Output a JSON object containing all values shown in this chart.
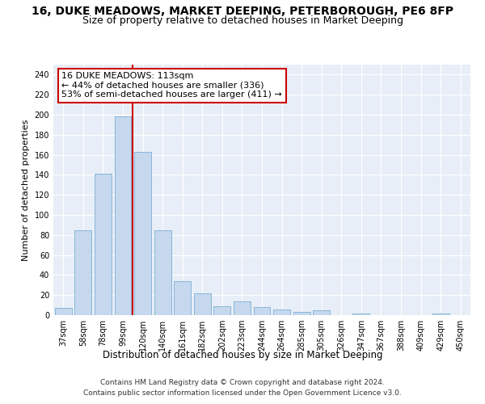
{
  "title": "16, DUKE MEADOWS, MARKET DEEPING, PETERBOROUGH, PE6 8FP",
  "subtitle": "Size of property relative to detached houses in Market Deeping",
  "xlabel": "Distribution of detached houses by size in Market Deeping",
  "ylabel": "Number of detached properties",
  "categories": [
    "37sqm",
    "58sqm",
    "78sqm",
    "99sqm",
    "120sqm",
    "140sqm",
    "161sqm",
    "182sqm",
    "202sqm",
    "223sqm",
    "244sqm",
    "264sqm",
    "285sqm",
    "305sqm",
    "326sqm",
    "347sqm",
    "367sqm",
    "388sqm",
    "409sqm",
    "429sqm",
    "450sqm"
  ],
  "values": [
    7,
    85,
    141,
    198,
    163,
    85,
    34,
    22,
    9,
    14,
    8,
    6,
    3,
    5,
    0,
    2,
    0,
    0,
    0,
    2,
    0
  ],
  "bar_color": "#c5d8ee",
  "bar_edge_color": "#7aafd4",
  "vline_color": "#cc0000",
  "annotation_text": "16 DUKE MEADOWS: 113sqm\n← 44% of detached houses are smaller (336)\n53% of semi-detached houses are larger (411) →",
  "annotation_box_color": "#ffffff",
  "annotation_box_edge": "#cc0000",
  "ylim": [
    0,
    250
  ],
  "yticks": [
    0,
    20,
    40,
    60,
    80,
    100,
    120,
    140,
    160,
    180,
    200,
    220,
    240
  ],
  "background_color": "#e8eef7",
  "footer_line1": "Contains HM Land Registry data © Crown copyright and database right 2024.",
  "footer_line2": "Contains public sector information licensed under the Open Government Licence v3.0.",
  "title_fontsize": 10,
  "subtitle_fontsize": 9,
  "xlabel_fontsize": 8.5,
  "ylabel_fontsize": 8,
  "tick_fontsize": 7,
  "annotation_fontsize": 8,
  "footer_fontsize": 6.5
}
